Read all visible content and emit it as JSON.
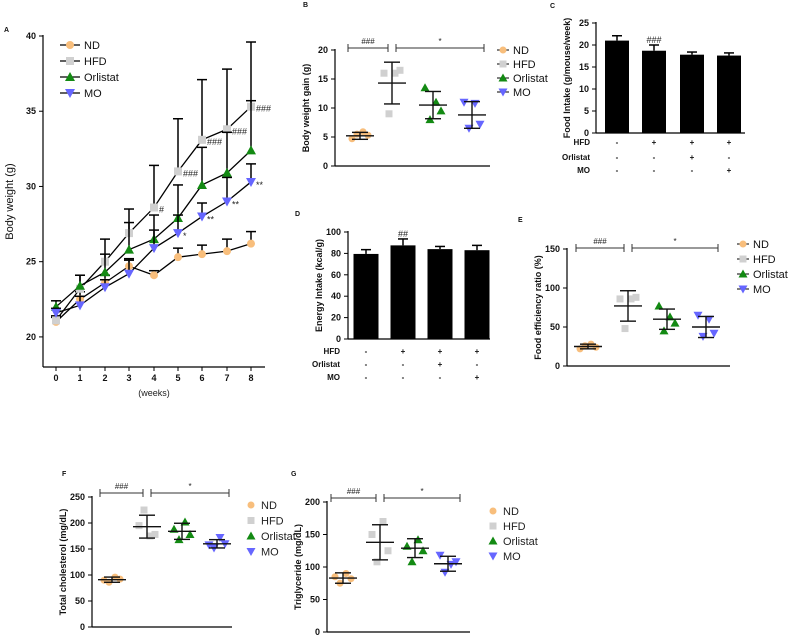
{
  "groups": [
    {
      "name": "ND",
      "color": "#f8be7c",
      "marker": "circle"
    },
    {
      "name": "HFD",
      "color": "#d0d0d0",
      "marker": "square"
    },
    {
      "name": "Orlistat",
      "color": "#138a13",
      "marker": "triangle-up"
    },
    {
      "name": "MO",
      "color": "#6666ff",
      "marker": "triangle-down"
    }
  ],
  "chart_data": [
    {
      "panel": "A",
      "type": "line",
      "ylabel": "Body weight (g)",
      "xlabel": "(weeks)",
      "x": [
        0,
        1,
        2,
        3,
        4,
        5,
        6,
        7,
        8
      ],
      "xticks": [
        "0",
        "1",
        "2",
        "3",
        "4",
        "5",
        "6",
        "7",
        "8"
      ],
      "ylim": [
        18,
        40
      ],
      "yticks": [
        "20",
        "25",
        "30",
        "35",
        "40"
      ],
      "ytick_values": [
        20,
        25,
        30,
        35,
        40
      ],
      "series": [
        {
          "name": "ND",
          "values": [
            21.0,
            22.5,
            23.6,
            24.7,
            24.1,
            25.3,
            25.5,
            25.7,
            26.2
          ],
          "sd": [
            0.3,
            0.5,
            0.5,
            0.5,
            0.3,
            0.6,
            0.6,
            0.8,
            0.8
          ],
          "annotations": [
            "",
            "",
            "",
            "",
            "",
            "",
            "",
            "",
            ""
          ]
        },
        {
          "name": "HFD",
          "values": [
            21.1,
            23.2,
            25.0,
            26.9,
            28.6,
            31.0,
            33.1,
            33.8,
            35.3
          ],
          "sd": [
            0.3,
            0.9,
            1.5,
            1.6,
            2.8,
            3.5,
            4.0,
            4.0,
            4.3
          ],
          "annotations": [
            "",
            "",
            "",
            "",
            "#",
            "###",
            "###",
            "###",
            "###"
          ]
        },
        {
          "name": "Orlistat",
          "values": [
            22.0,
            23.4,
            24.3,
            25.8,
            26.5,
            27.9,
            30.1,
            30.9,
            32.4
          ],
          "sd": [
            0.4,
            0.7,
            1.2,
            1.8,
            1.6,
            2.2,
            2.5,
            2.7,
            3.3
          ],
          "annotations": [
            "",
            "",
            "",
            "",
            "",
            "",
            "",
            "",
            ""
          ]
        },
        {
          "name": "MO",
          "values": [
            21.6,
            22.1,
            23.3,
            24.2,
            25.9,
            26.9,
            28.0,
            29.0,
            30.3
          ],
          "sd": [
            0.3,
            0.6,
            0.5,
            0.9,
            1.2,
            1.2,
            0.9,
            1.6,
            1.2
          ],
          "annotations": [
            "",
            "",
            "",
            "",
            "",
            "*",
            "**",
            "**",
            "**"
          ]
        }
      ]
    },
    {
      "panel": "B",
      "type": "scatter",
      "ylabel": "Body weight gain (g)",
      "ylim": [
        0,
        20
      ],
      "yticks": [
        "0",
        "5",
        "10",
        "15",
        "20"
      ],
      "ytick_values": [
        0,
        5,
        10,
        15,
        20
      ],
      "series": [
        {
          "name": "ND",
          "mean": 5.2,
          "sd": 0.6,
          "points": [
            4.7,
            5.5,
            5.9,
            5.3
          ]
        },
        {
          "name": "HFD",
          "mean": 14.3,
          "sd": 3.6,
          "points": [
            16.0,
            9.0,
            16.0,
            16.5
          ]
        },
        {
          "name": "Orlistat",
          "mean": 10.5,
          "sd": 2.35,
          "points": [
            13.5,
            8.0,
            11.0,
            9.5
          ]
        },
        {
          "name": "MO",
          "mean": 8.8,
          "sd": 2.3,
          "points": [
            11.0,
            6.5,
            10.8,
            7.2
          ]
        }
      ],
      "brackets": [
        {
          "from": 0,
          "to": 1,
          "label": "###"
        },
        {
          "from": 1,
          "to": 3,
          "label": "*"
        }
      ]
    },
    {
      "panel": "C",
      "type": "bar",
      "ylabel": "Food Intake (g/mouse/week)",
      "ylim": [
        0,
        25
      ],
      "yticks": [
        "0",
        "5",
        "10",
        "15",
        "20",
        "25"
      ],
      "ytick_values": [
        0,
        5,
        10,
        15,
        20,
        25
      ],
      "values": [
        21.0,
        18.7,
        17.8,
        17.6
      ],
      "errors": [
        1.1,
        1.3,
        0.6,
        0.6
      ],
      "annotations": [
        "",
        "###",
        "",
        ""
      ],
      "treatments": [
        {
          "label": "HFD",
          "marks": [
            "-",
            "+",
            "+",
            "+"
          ]
        },
        {
          "label": "Orlistat",
          "marks": [
            "-",
            "-",
            "+",
            "-"
          ]
        },
        {
          "label": "MO",
          "marks": [
            "-",
            "-",
            "-",
            "+"
          ]
        }
      ]
    },
    {
      "panel": "D",
      "type": "bar",
      "ylabel": "Energy Intake (kcal/g)",
      "ylim": [
        0,
        100
      ],
      "yticks": [
        "0",
        "20",
        "40",
        "60",
        "80",
        "100"
      ],
      "ytick_values": [
        0,
        20,
        40,
        60,
        80,
        100
      ],
      "values": [
        79.5,
        87.5,
        84.0,
        83.0
      ],
      "errors": [
        4.0,
        6.0,
        2.5,
        4.5
      ],
      "annotations": [
        "",
        "##",
        "",
        ""
      ],
      "treatments": [
        {
          "label": "HFD",
          "marks": [
            "-",
            "+",
            "+",
            "+"
          ]
        },
        {
          "label": "Orlistat",
          "marks": [
            "-",
            "-",
            "+",
            "-"
          ]
        },
        {
          "label": "MO",
          "marks": [
            "-",
            "-",
            "-",
            "+"
          ]
        }
      ]
    },
    {
      "panel": "E",
      "type": "scatter",
      "ylabel": "Food efficiency ratio (%)",
      "ylim": [
        0,
        150
      ],
      "yticks": [
        "0",
        "50",
        "100",
        "150"
      ],
      "ytick_values": [
        0,
        50,
        100,
        150
      ],
      "series": [
        {
          "name": "ND",
          "mean": 25,
          "sd": 3,
          "points": [
            22,
            26,
            28,
            24
          ]
        },
        {
          "name": "HFD",
          "mean": 77,
          "sd": 19.5,
          "points": [
            86,
            48,
            86,
            88
          ]
        },
        {
          "name": "Orlistat",
          "mean": 60,
          "sd": 13,
          "points": [
            77,
            45,
            63,
            55
          ]
        },
        {
          "name": "MO",
          "mean": 50,
          "sd": 13.5,
          "points": [
            65,
            38,
            60,
            42
          ]
        }
      ],
      "brackets": [
        {
          "from": 0,
          "to": 1,
          "label": "###"
        },
        {
          "from": 1,
          "to": 3,
          "label": "*"
        }
      ]
    },
    {
      "panel": "F",
      "type": "scatter",
      "ylabel": "Total cholesterol (mg/dL)",
      "ylim": [
        0,
        250
      ],
      "yticks": [
        "0",
        "50",
        "100",
        "150",
        "200",
        "250"
      ],
      "ytick_values": [
        0,
        50,
        100,
        150,
        200,
        250
      ],
      "series": [
        {
          "name": "ND",
          "mean": 91,
          "sd": 5,
          "points": [
            90,
            86,
            96,
            92
          ]
        },
        {
          "name": "HFD",
          "mean": 193,
          "sd": 22,
          "points": [
            195,
            225,
            175,
            178
          ]
        },
        {
          "name": "Orlistat",
          "mean": 184,
          "sd": 15.5,
          "points": [
            188,
            168,
            202,
            178
          ]
        },
        {
          "name": "MO",
          "mean": 160,
          "sd": 8,
          "points": [
            158,
            152,
            172,
            160
          ]
        }
      ],
      "brackets": [
        {
          "from": 0,
          "to": 1,
          "label": "###"
        },
        {
          "from": 1,
          "to": 3,
          "label": "*"
        }
      ]
    },
    {
      "panel": "G",
      "type": "scatter",
      "ylabel": "Triglyceride (mg/dL)",
      "ylim": [
        0,
        200
      ],
      "yticks": [
        "0",
        "50",
        "100",
        "150",
        "200"
      ],
      "ytick_values": [
        0,
        50,
        100,
        150,
        200
      ],
      "series": [
        {
          "name": "ND",
          "mean": 83,
          "sd": 8,
          "points": [
            85,
            75,
            90,
            82
          ]
        },
        {
          "name": "HFD",
          "mean": 138,
          "sd": 27,
          "points": [
            150,
            108,
            170,
            125
          ]
        },
        {
          "name": "Orlistat",
          "mean": 129,
          "sd": 14.5,
          "points": [
            132,
            108,
            142,
            125
          ]
        },
        {
          "name": "MO",
          "mean": 105,
          "sd": 11.5,
          "points": [
            118,
            92,
            104,
            108
          ]
        }
      ],
      "brackets": [
        {
          "from": 0,
          "to": 1,
          "label": "###"
        },
        {
          "from": 1,
          "to": 3,
          "label": "*"
        }
      ]
    }
  ]
}
